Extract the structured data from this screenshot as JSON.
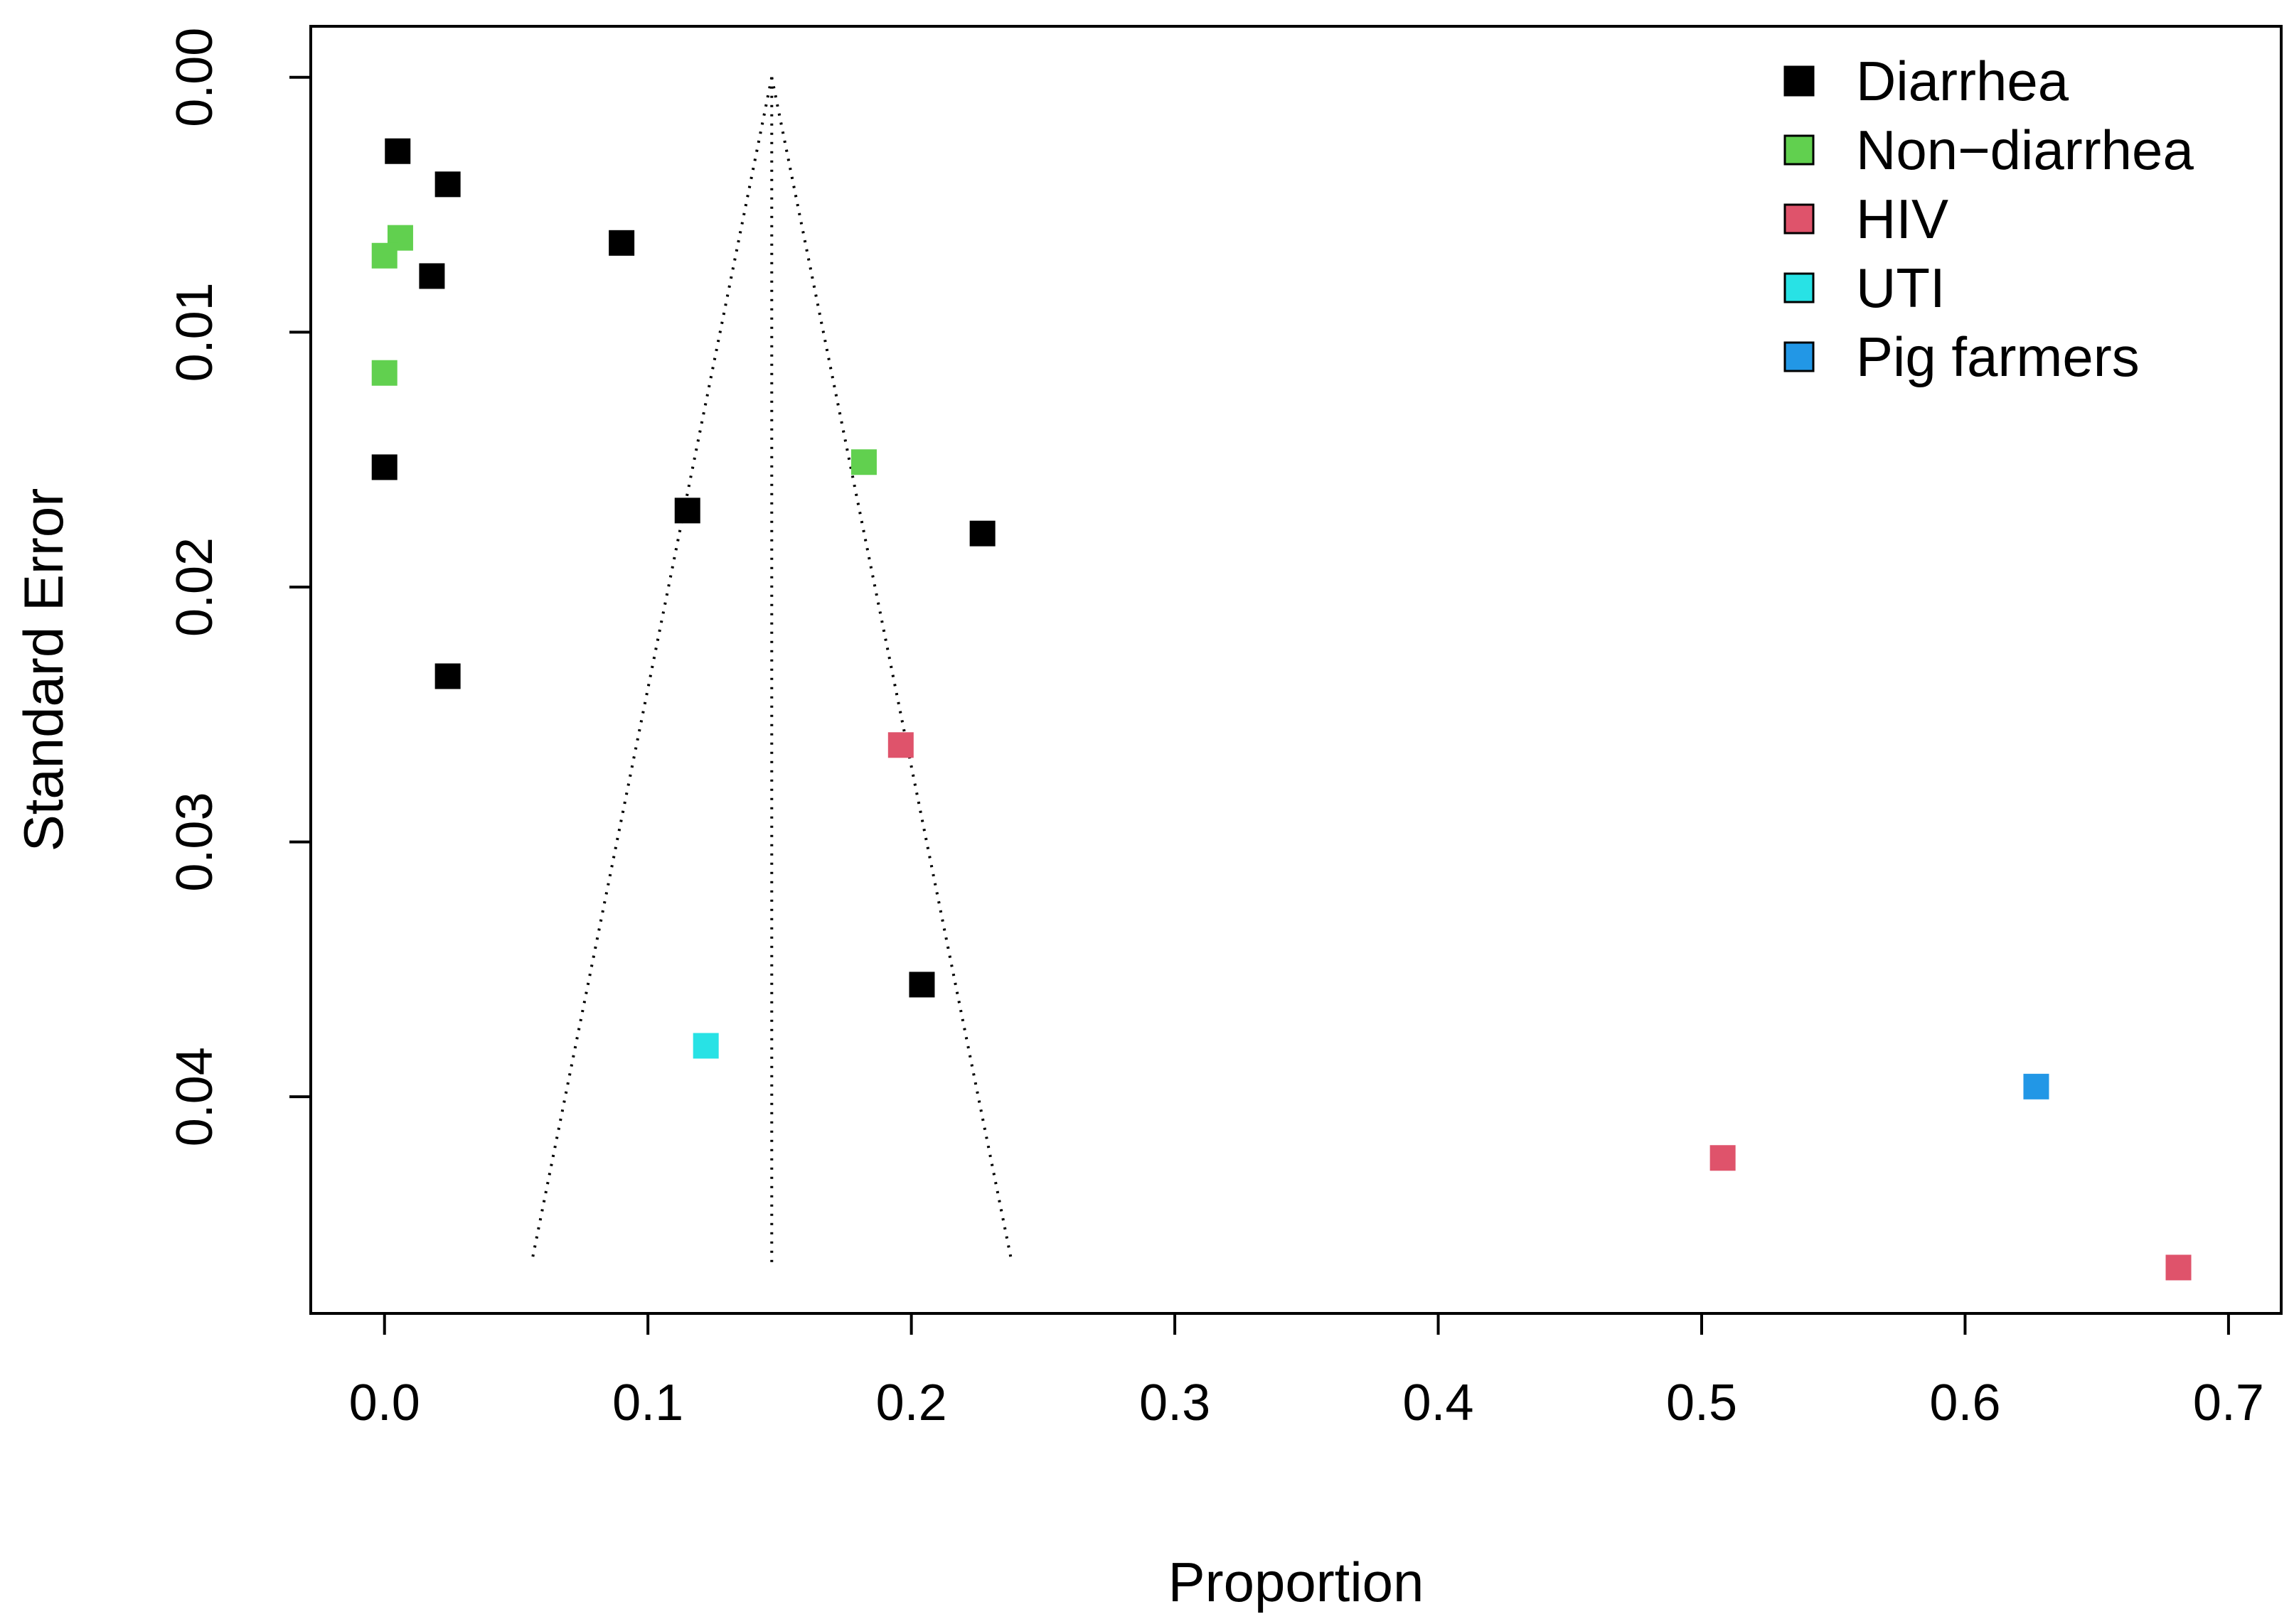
{
  "chart_data": {
    "type": "scatter",
    "subtype": "funnel",
    "xlabel": "Proportion",
    "ylabel": "Standard Error",
    "xlim": [
      -0.028,
      0.72
    ],
    "ylim": [
      0.0485,
      -0.002
    ],
    "xticks": [
      0.0,
      0.1,
      0.2,
      0.3,
      0.4,
      0.5,
      0.6,
      0.7
    ],
    "xtick_labels": [
      "0.0",
      "0.1",
      "0.2",
      "0.3",
      "0.4",
      "0.5",
      "0.6",
      "0.7"
    ],
    "yticks": [
      0.0,
      0.01,
      0.02,
      0.03,
      0.04
    ],
    "ytick_labels": [
      "0.00",
      "0.01",
      "0.02",
      "0.03",
      "0.04"
    ],
    "funnel": {
      "center": 0.147,
      "se_max": 0.0465,
      "z": 1.96
    },
    "legend": {
      "position": "top-right"
    },
    "series": [
      {
        "name": "Diarrhea",
        "color": "#000000",
        "points": [
          {
            "x": 0.005,
            "y": 0.0029
          },
          {
            "x": 0.024,
            "y": 0.0042
          },
          {
            "x": 0.018,
            "y": 0.0078
          },
          {
            "x": 0.09,
            "y": 0.0065
          },
          {
            "x": 0.0,
            "y": 0.0153
          },
          {
            "x": 0.115,
            "y": 0.017
          },
          {
            "x": 0.227,
            "y": 0.0179
          },
          {
            "x": 0.024,
            "y": 0.0235
          },
          {
            "x": 0.204,
            "y": 0.0356
          }
        ]
      },
      {
        "name": "Non−diarrhea",
        "color": "#61D04F",
        "points": [
          {
            "x": 0.006,
            "y": 0.0063
          },
          {
            "x": 0.0,
            "y": 0.007
          },
          {
            "x": 0.0,
            "y": 0.0116
          },
          {
            "x": 0.182,
            "y": 0.0151
          }
        ]
      },
      {
        "name": "HIV",
        "color": "#DF536B",
        "points": [
          {
            "x": 0.196,
            "y": 0.0262
          },
          {
            "x": 0.508,
            "y": 0.0424
          },
          {
            "x": 0.681,
            "y": 0.0467
          }
        ]
      },
      {
        "name": "UTI",
        "color": "#28E2E5",
        "points": [
          {
            "x": 0.122,
            "y": 0.038
          }
        ]
      },
      {
        "name": "Pig farmers",
        "color": "#2297E6",
        "points": [
          {
            "x": 0.627,
            "y": 0.0396
          }
        ]
      }
    ]
  }
}
